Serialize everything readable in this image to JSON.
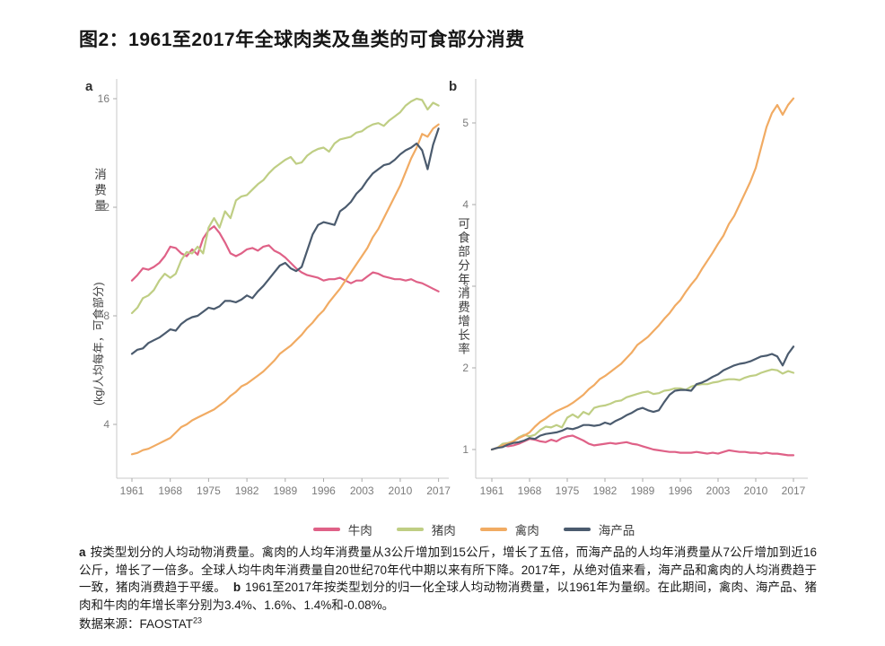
{
  "title": "图2：1961至2017年全球肉类及鱼类的可食部分消费",
  "colors": {
    "beef": "#df6187",
    "pork": "#bfce84",
    "poultry": "#f1ab63",
    "seafood": "#4b5b6e",
    "spine": "#c9c9c9",
    "tick": "#a9a9a9",
    "axis_text": "#7b7b7b"
  },
  "legend": [
    {
      "key": "beef",
      "label": "牛肉"
    },
    {
      "key": "pork",
      "label": "猪肉"
    },
    {
      "key": "poultry",
      "label": "禽肉"
    },
    {
      "key": "seafood",
      "label": "海产品"
    }
  ],
  "caption": {
    "marker_a": "a",
    "text_a": "按类型划分的人均动物消费量。禽肉的人均年消费量从3公斤增加到15公斤，增长了五倍，而海产品的人均年消费量从7公斤增加到近16公斤，增长了一倍多。全球人均牛肉年消费量自20世纪70年代中期以来有所下降。2017年，从绝对值来看，海产品和禽肉的人均消费趋于一致，猪肉消费趋于平缓。",
    "marker_b": "b",
    "text_b": "1961至2017年按类型划分的归一化全球人均动物消费量，以1961年为量纲。在此期间，禽肉、海产品、猪肉和牛肉的年增长率分别为3.4%、1.6%、1.4%和-0.08%。",
    "source_label": "数据来源：FAOSTAT",
    "source_sup": "23"
  },
  "chart_data": [
    {
      "id": "a",
      "panel_label": "a",
      "type": "line",
      "ylabel_main": "消费量",
      "ylabel_unit": "(kg/人均每年，可食部分)",
      "xlabel": "",
      "x_years": {
        "first": 1961,
        "last": 2017,
        "step": 1
      },
      "x_ticks": [
        1961,
        1968,
        1975,
        1982,
        1989,
        1996,
        2003,
        2010,
        2017
      ],
      "y_ticks": [
        4,
        8,
        12,
        16
      ],
      "ylim": [
        2.0,
        16.8
      ],
      "xlim": [
        1961,
        2017
      ],
      "grid": false,
      "legend_position": "bottom",
      "series": [
        {
          "key": "beef",
          "name": "牛肉",
          "values": [
            9.3,
            9.5,
            9.75,
            9.7,
            9.8,
            9.95,
            10.2,
            10.55,
            10.5,
            10.3,
            10.2,
            10.45,
            10.25,
            10.85,
            11.15,
            11.3,
            11.05,
            10.7,
            10.3,
            10.2,
            10.3,
            10.45,
            10.5,
            10.4,
            10.55,
            10.6,
            10.4,
            10.3,
            10.15,
            9.95,
            9.75,
            9.6,
            9.5,
            9.45,
            9.4,
            9.3,
            9.35,
            9.35,
            9.4,
            9.3,
            9.2,
            9.3,
            9.3,
            9.45,
            9.6,
            9.55,
            9.45,
            9.4,
            9.35,
            9.35,
            9.3,
            9.35,
            9.25,
            9.2,
            9.1,
            9.0,
            8.9
          ]
        },
        {
          "key": "pork",
          "name": "猪肉",
          "values": [
            8.1,
            8.3,
            8.65,
            8.75,
            8.95,
            9.3,
            9.55,
            9.4,
            9.55,
            10.05,
            10.35,
            10.3,
            10.55,
            10.3,
            11.25,
            11.6,
            11.25,
            11.85,
            11.6,
            12.25,
            12.4,
            12.45,
            12.65,
            12.85,
            13.0,
            13.25,
            13.45,
            13.6,
            13.75,
            13.85,
            13.6,
            13.65,
            13.9,
            14.05,
            14.15,
            14.2,
            14.05,
            14.35,
            14.5,
            14.55,
            14.6,
            14.75,
            14.8,
            14.95,
            15.05,
            15.1,
            15.0,
            15.2,
            15.35,
            15.5,
            15.75,
            15.9,
            16.0,
            15.95,
            15.6,
            15.85,
            15.75
          ]
        },
        {
          "key": "poultry",
          "name": "禽肉",
          "values": [
            2.9,
            2.95,
            3.05,
            3.1,
            3.2,
            3.3,
            3.4,
            3.5,
            3.7,
            3.9,
            4.0,
            4.15,
            4.25,
            4.35,
            4.45,
            4.55,
            4.7,
            4.85,
            5.05,
            5.2,
            5.4,
            5.5,
            5.65,
            5.8,
            5.95,
            6.15,
            6.35,
            6.6,
            6.75,
            6.9,
            7.1,
            7.3,
            7.55,
            7.75,
            8.0,
            8.2,
            8.5,
            8.75,
            9.0,
            9.3,
            9.6,
            9.9,
            10.2,
            10.5,
            10.9,
            11.2,
            11.6,
            12.0,
            12.4,
            12.8,
            13.3,
            13.8,
            14.2,
            14.7,
            14.6,
            14.9,
            15.05
          ]
        },
        {
          "key": "seafood",
          "name": "海产品",
          "values": [
            6.6,
            6.75,
            6.8,
            7.0,
            7.1,
            7.2,
            7.35,
            7.5,
            7.45,
            7.7,
            7.85,
            7.95,
            8.0,
            8.15,
            8.3,
            8.25,
            8.35,
            8.55,
            8.55,
            8.5,
            8.6,
            8.75,
            8.65,
            8.9,
            9.1,
            9.35,
            9.6,
            9.85,
            9.95,
            9.75,
            9.65,
            9.8,
            10.4,
            11.0,
            11.35,
            11.45,
            11.4,
            11.35,
            11.85,
            12.0,
            12.2,
            12.5,
            12.7,
            13.0,
            13.25,
            13.4,
            13.55,
            13.6,
            13.75,
            13.95,
            14.1,
            14.2,
            14.35,
            14.1,
            13.4,
            14.3,
            14.9
          ]
        }
      ]
    },
    {
      "id": "b",
      "panel_label": "b",
      "type": "line",
      "ylabel_main": "可食部分年消费增长率",
      "ylabel_unit": "",
      "xlabel": "",
      "x_years": {
        "first": 1961,
        "last": 2017,
        "step": 1
      },
      "x_ticks": [
        1961,
        1968,
        1975,
        1982,
        1989,
        1996,
        2003,
        2010,
        2017
      ],
      "y_ticks": [
        1,
        2,
        3,
        4,
        5
      ],
      "ylim": [
        0.65,
        5.55
      ],
      "xlim": [
        1961,
        2017
      ],
      "grid": false,
      "legend_position": "bottom",
      "series": [
        {
          "key": "beef",
          "name": "牛肉",
          "values": [
            1.0,
            1.02,
            1.05,
            1.04,
            1.05,
            1.07,
            1.1,
            1.13,
            1.12,
            1.1,
            1.09,
            1.12,
            1.1,
            1.14,
            1.16,
            1.17,
            1.14,
            1.11,
            1.07,
            1.05,
            1.06,
            1.07,
            1.08,
            1.07,
            1.08,
            1.09,
            1.07,
            1.06,
            1.04,
            1.02,
            1.0,
            0.99,
            0.98,
            0.97,
            0.97,
            0.96,
            0.96,
            0.96,
            0.97,
            0.96,
            0.95,
            0.96,
            0.95,
            0.97,
            0.99,
            0.98,
            0.97,
            0.97,
            0.96,
            0.96,
            0.95,
            0.96,
            0.95,
            0.95,
            0.94,
            0.93,
            0.93
          ]
        },
        {
          "key": "pork",
          "name": "猪肉",
          "values": [
            1.0,
            1.02,
            1.07,
            1.08,
            1.1,
            1.15,
            1.18,
            1.16,
            1.18,
            1.24,
            1.28,
            1.27,
            1.3,
            1.27,
            1.39,
            1.43,
            1.39,
            1.46,
            1.43,
            1.51,
            1.53,
            1.54,
            1.56,
            1.59,
            1.6,
            1.64,
            1.66,
            1.68,
            1.7,
            1.71,
            1.68,
            1.69,
            1.72,
            1.73,
            1.75,
            1.75,
            1.73,
            1.77,
            1.79,
            1.8,
            1.8,
            1.82,
            1.83,
            1.85,
            1.86,
            1.86,
            1.85,
            1.88,
            1.9,
            1.91,
            1.94,
            1.96,
            1.98,
            1.97,
            1.93,
            1.96,
            1.94
          ]
        },
        {
          "key": "poultry",
          "name": "禽肉",
          "values": [
            1.0,
            1.02,
            1.05,
            1.07,
            1.1,
            1.14,
            1.17,
            1.21,
            1.28,
            1.34,
            1.38,
            1.43,
            1.47,
            1.5,
            1.53,
            1.57,
            1.62,
            1.67,
            1.74,
            1.79,
            1.86,
            1.9,
            1.95,
            2.0,
            2.05,
            2.12,
            2.19,
            2.28,
            2.33,
            2.38,
            2.45,
            2.52,
            2.6,
            2.67,
            2.76,
            2.83,
            2.93,
            3.02,
            3.1,
            3.21,
            3.31,
            3.41,
            3.52,
            3.62,
            3.76,
            3.86,
            4.0,
            4.14,
            4.28,
            4.45,
            4.7,
            4.95,
            5.12,
            5.22,
            5.1,
            5.22,
            5.3
          ]
        },
        {
          "key": "seafood",
          "name": "海产品",
          "values": [
            1.0,
            1.02,
            1.03,
            1.06,
            1.08,
            1.09,
            1.11,
            1.14,
            1.13,
            1.17,
            1.19,
            1.2,
            1.21,
            1.23,
            1.26,
            1.25,
            1.27,
            1.3,
            1.3,
            1.29,
            1.3,
            1.33,
            1.31,
            1.35,
            1.38,
            1.42,
            1.45,
            1.49,
            1.51,
            1.48,
            1.46,
            1.48,
            1.58,
            1.67,
            1.72,
            1.73,
            1.73,
            1.72,
            1.8,
            1.82,
            1.85,
            1.89,
            1.92,
            1.97,
            2.0,
            2.03,
            2.05,
            2.06,
            2.08,
            2.11,
            2.14,
            2.15,
            2.17,
            2.14,
            2.03,
            2.17,
            2.26
          ]
        }
      ]
    }
  ]
}
